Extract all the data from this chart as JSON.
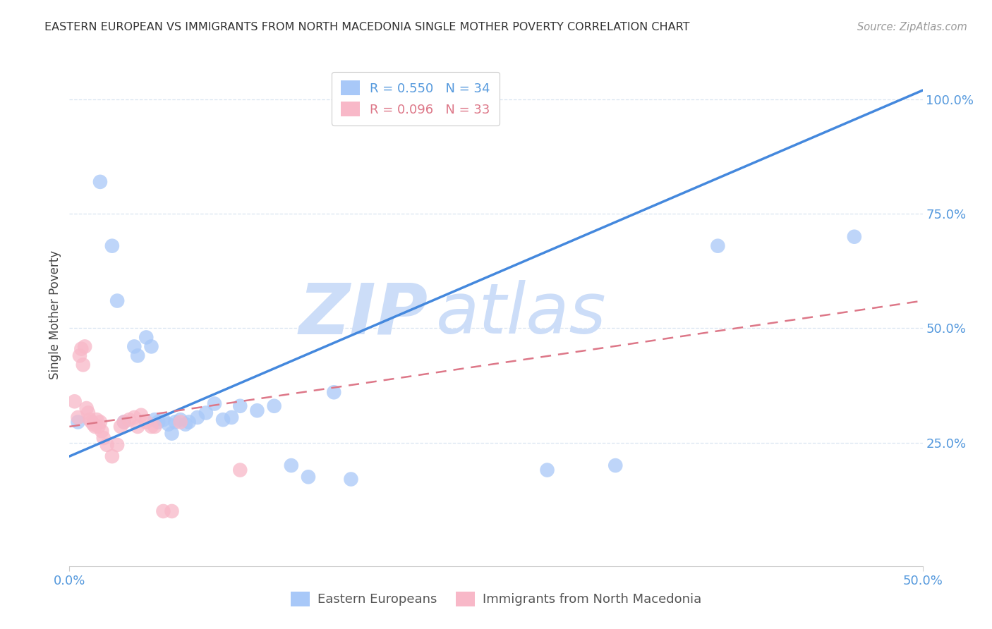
{
  "title": "EASTERN EUROPEAN VS IMMIGRANTS FROM NORTH MACEDONIA SINGLE MOTHER POVERTY CORRELATION CHART",
  "source": "Source: ZipAtlas.com",
  "ylabel": "Single Mother Poverty",
  "xlim": [
    0.0,
    0.5
  ],
  "ylim": [
    -0.02,
    1.08
  ],
  "legend_blue_R": "R = 0.550",
  "legend_blue_N": "N = 34",
  "legend_pink_R": "R = 0.096",
  "legend_pink_N": "N = 33",
  "blue_color": "#a8c8f8",
  "pink_color": "#f8b8c8",
  "blue_line_color": "#4488dd",
  "pink_line_color": "#dd7788",
  "watermark_zip": "ZIP",
  "watermark_atlas": "atlas",
  "blue_scatter_x": [
    0.005,
    0.018,
    0.025,
    0.028,
    0.032,
    0.038,
    0.04,
    0.045,
    0.048,
    0.05,
    0.052,
    0.055,
    0.058,
    0.06,
    0.062,
    0.065,
    0.068,
    0.07,
    0.075,
    0.08,
    0.085,
    0.09,
    0.095,
    0.1,
    0.11,
    0.12,
    0.13,
    0.14,
    0.155,
    0.165,
    0.28,
    0.32,
    0.38,
    0.46
  ],
  "blue_scatter_y": [
    0.295,
    0.82,
    0.68,
    0.56,
    0.295,
    0.46,
    0.44,
    0.48,
    0.46,
    0.3,
    0.295,
    0.3,
    0.29,
    0.27,
    0.295,
    0.3,
    0.29,
    0.295,
    0.305,
    0.315,
    0.335,
    0.3,
    0.305,
    0.33,
    0.32,
    0.33,
    0.2,
    0.175,
    0.36,
    0.17,
    0.19,
    0.2,
    0.68,
    0.7
  ],
  "pink_scatter_x": [
    0.003,
    0.005,
    0.006,
    0.007,
    0.008,
    0.009,
    0.01,
    0.011,
    0.012,
    0.013,
    0.014,
    0.015,
    0.016,
    0.017,
    0.018,
    0.019,
    0.02,
    0.022,
    0.025,
    0.028,
    0.03,
    0.032,
    0.035,
    0.038,
    0.04,
    0.042,
    0.045,
    0.048,
    0.05,
    0.055,
    0.06,
    0.065,
    0.1
  ],
  "pink_scatter_y": [
    0.34,
    0.305,
    0.44,
    0.455,
    0.42,
    0.46,
    0.325,
    0.315,
    0.3,
    0.295,
    0.29,
    0.285,
    0.3,
    0.285,
    0.295,
    0.275,
    0.26,
    0.245,
    0.22,
    0.245,
    0.285,
    0.295,
    0.3,
    0.305,
    0.285,
    0.31,
    0.295,
    0.285,
    0.285,
    0.1,
    0.1,
    0.295,
    0.19
  ],
  "blue_trendline_x": [
    0.0,
    0.5
  ],
  "blue_trendline_y": [
    0.22,
    1.02
  ],
  "pink_trendline_x": [
    0.0,
    0.5
  ],
  "pink_trendline_y": [
    0.285,
    0.56
  ],
  "title_color": "#333333",
  "axis_label_color": "#5599dd",
  "grid_color": "#d8e4f0",
  "watermark_color": "#ccddf8",
  "background_color": "#ffffff",
  "yticks": [
    0.25,
    0.5,
    0.75,
    1.0
  ],
  "ytick_labels": [
    "25.0%",
    "50.0%",
    "75.0%",
    "100.0%"
  ],
  "xtick_labels": [
    "0.0%",
    "50.0%"
  ],
  "xticks": [
    0.0,
    0.5
  ]
}
